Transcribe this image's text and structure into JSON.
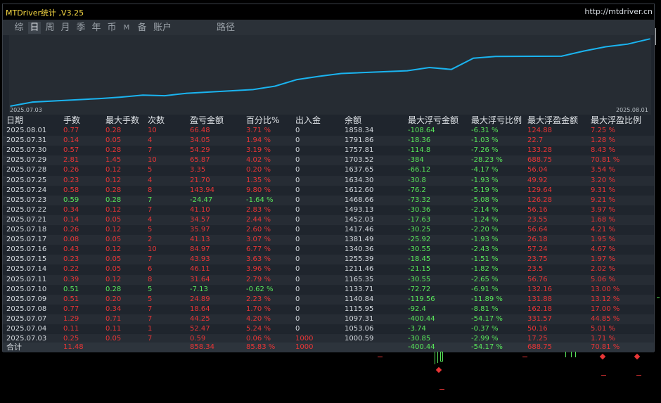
{
  "app": {
    "title": "MTDriver统计 ,V3.25",
    "url": "http://mtdriver.cn"
  },
  "tabs": [
    {
      "label": "综",
      "active": false
    },
    {
      "label": "日",
      "active": true
    },
    {
      "label": "周",
      "active": false
    },
    {
      "label": "月",
      "active": false
    },
    {
      "label": "季",
      "active": false
    },
    {
      "label": "年",
      "active": false
    },
    {
      "label": "币",
      "active": false
    },
    {
      "label": "M",
      "active": false
    },
    {
      "label": "备",
      "active": false
    },
    {
      "label": "账户",
      "active": false
    },
    {
      "label": "路径",
      "active": false
    }
  ],
  "chart_data": {
    "type": "line",
    "x_start_label": "2025.07.03",
    "x_end_label": "2025.08.01",
    "line_color": "#1ab4f0",
    "x": [
      "2025.07.03",
      "2025.07.04",
      "2025.07.07",
      "2025.07.08",
      "2025.07.09",
      "2025.07.10",
      "2025.07.11",
      "2025.07.14",
      "2025.07.15",
      "2025.07.16",
      "2025.07.17",
      "2025.07.18",
      "2025.07.21",
      "2025.07.22",
      "2025.07.23",
      "2025.07.24",
      "2025.07.25",
      "2025.07.28",
      "2025.07.29",
      "2025.07.30",
      "2025.07.31",
      "2025.08.01"
    ],
    "values": [
      1000.59,
      1053.06,
      1097.31,
      1115.95,
      1140.84,
      1133.71,
      1165.35,
      1211.46,
      1255.39,
      1340.36,
      1381.49,
      1417.46,
      1452.03,
      1493.13,
      1468.66,
      1612.6,
      1634.3,
      1637.65,
      1703.52,
      1757.81,
      1791.86,
      1858.34
    ]
  },
  "table": {
    "headers": [
      "日期",
      "手数",
      "最大手数",
      "次数",
      "盈亏金额",
      "百分比%",
      "出入金",
      "余额",
      "最大浮亏金额",
      "最大浮亏比例",
      "最大浮盈金额",
      "最大浮盈比例"
    ],
    "rows": [
      [
        "2025.08.01",
        "0.77",
        "0.28",
        "10",
        "66.48",
        "3.71 %",
        "0",
        "1858.34",
        "-108.64",
        "-6.31 %",
        "124.88",
        "7.25 %"
      ],
      [
        "2025.07.31",
        "0.14",
        "0.05",
        "4",
        "34.05",
        "1.94 %",
        "0",
        "1791.86",
        "-18.36",
        "-1.03 %",
        "22.7",
        "1.28 %"
      ],
      [
        "2025.07.30",
        "0.57",
        "0.28",
        "7",
        "54.29",
        "3.19 %",
        "0",
        "1757.81",
        "-114.8",
        "-7.26 %",
        "133.28",
        "8.43 %"
      ],
      [
        "2025.07.29",
        "2.81",
        "1.45",
        "10",
        "65.87",
        "4.02 %",
        "0",
        "1703.52",
        "-384",
        "-28.23 %",
        "688.75",
        "70.81 %"
      ],
      [
        "2025.07.28",
        "0.26",
        "0.12",
        "5",
        "3.35",
        "0.20 %",
        "0",
        "1637.65",
        "-66.12",
        "-4.17 %",
        "56.04",
        "3.54 %"
      ],
      [
        "2025.07.25",
        "0.23",
        "0.12",
        "4",
        "21.70",
        "1.35 %",
        "0",
        "1634.30",
        "-30.8",
        "-1.93 %",
        "49.92",
        "3.20 %"
      ],
      [
        "2025.07.24",
        "0.58",
        "0.28",
        "8",
        "143.94",
        "9.80 %",
        "0",
        "1612.60",
        "-76.2",
        "-5.19 %",
        "129.64",
        "9.31 %"
      ],
      [
        "2025.07.23",
        "0.59",
        "0.28",
        "7",
        "-24.47",
        "-1.64 %",
        "0",
        "1468.66",
        "-73.32",
        "-5.08 %",
        "126.28",
        "9.21 %"
      ],
      [
        "2025.07.22",
        "0.34",
        "0.12",
        "7",
        "41.10",
        "2.83 %",
        "0",
        "1493.13",
        "-30.36",
        "-2.14 %",
        "56.16",
        "3.97 %"
      ],
      [
        "2025.07.21",
        "0.14",
        "0.05",
        "4",
        "34.57",
        "2.44 %",
        "0",
        "1452.03",
        "-17.63",
        "-1.24 %",
        "23.55",
        "1.68 %"
      ],
      [
        "2025.07.18",
        "0.26",
        "0.12",
        "5",
        "35.97",
        "2.60 %",
        "0",
        "1417.46",
        "-30.25",
        "-2.20 %",
        "56.64",
        "4.21 %"
      ],
      [
        "2025.07.17",
        "0.08",
        "0.05",
        "2",
        "41.13",
        "3.07 %",
        "0",
        "1381.49",
        "-25.92",
        "-1.93 %",
        "26.18",
        "1.95 %"
      ],
      [
        "2025.07.16",
        "0.43",
        "0.12",
        "10",
        "84.97",
        "6.77 %",
        "0",
        "1340.36",
        "-30.55",
        "-2.43 %",
        "57.24",
        "4.67 %"
      ],
      [
        "2025.07.15",
        "0.23",
        "0.05",
        "7",
        "43.93",
        "3.63 %",
        "0",
        "1255.39",
        "-18.45",
        "-1.51 %",
        "23.75",
        "1.97 %"
      ],
      [
        "2025.07.14",
        "0.22",
        "0.05",
        "6",
        "46.11",
        "3.96 %",
        "0",
        "1211.46",
        "-21.15",
        "-1.82 %",
        "23.5",
        "2.02 %"
      ],
      [
        "2025.07.11",
        "0.39",
        "0.12",
        "8",
        "31.64",
        "2.79 %",
        "0",
        "1165.35",
        "-30.55",
        "-2.65 %",
        "56.76",
        "5.06 %"
      ],
      [
        "2025.07.10",
        "0.51",
        "0.28",
        "5",
        "-7.13",
        "-0.62 %",
        "0",
        "1133.71",
        "-72.72",
        "-6.91 %",
        "132.16",
        "13.00 %"
      ],
      [
        "2025.07.09",
        "0.51",
        "0.20",
        "5",
        "24.89",
        "2.23 %",
        "0",
        "1140.84",
        "-119.56",
        "-11.89 %",
        "131.88",
        "13.12 %"
      ],
      [
        "2025.07.08",
        "0.77",
        "0.34",
        "7",
        "18.64",
        "1.70 %",
        "0",
        "1115.95",
        "-92.4",
        "-8.81 %",
        "162.18",
        "17.00 %"
      ],
      [
        "2025.07.07",
        "1.29",
        "0.71",
        "7",
        "44.25",
        "4.20 %",
        "0",
        "1097.31",
        "-400.44",
        "-54.17 %",
        "331.57",
        "44.85 %"
      ],
      [
        "2025.07.04",
        "0.11",
        "0.11",
        "1",
        "52.47",
        "5.24 %",
        "0",
        "1053.06",
        "-3.74",
        "-0.37 %",
        "50.16",
        "5.01 %"
      ],
      [
        "2025.07.03",
        "0.25",
        "0.05",
        "7",
        "0.59",
        "0.06 %",
        "1000",
        "1000.59",
        "-30.85",
        "-2.99 %",
        "17.25",
        "1.71 %"
      ]
    ],
    "total": {
      "label": "合计",
      "lots": "11.48",
      "profit": "858.34",
      "percent": "85.83 %",
      "deposit": "1000",
      "max_float_loss": "-400.44",
      "max_float_loss_pct": "-54.17 %",
      "max_float_profit": "688.75",
      "max_float_profit_pct": "70.81 %"
    }
  },
  "colors": {
    "positive": "#e83536",
    "negative": "#58e65a",
    "neutral": "#d4d9de",
    "title": "#f5d742"
  }
}
